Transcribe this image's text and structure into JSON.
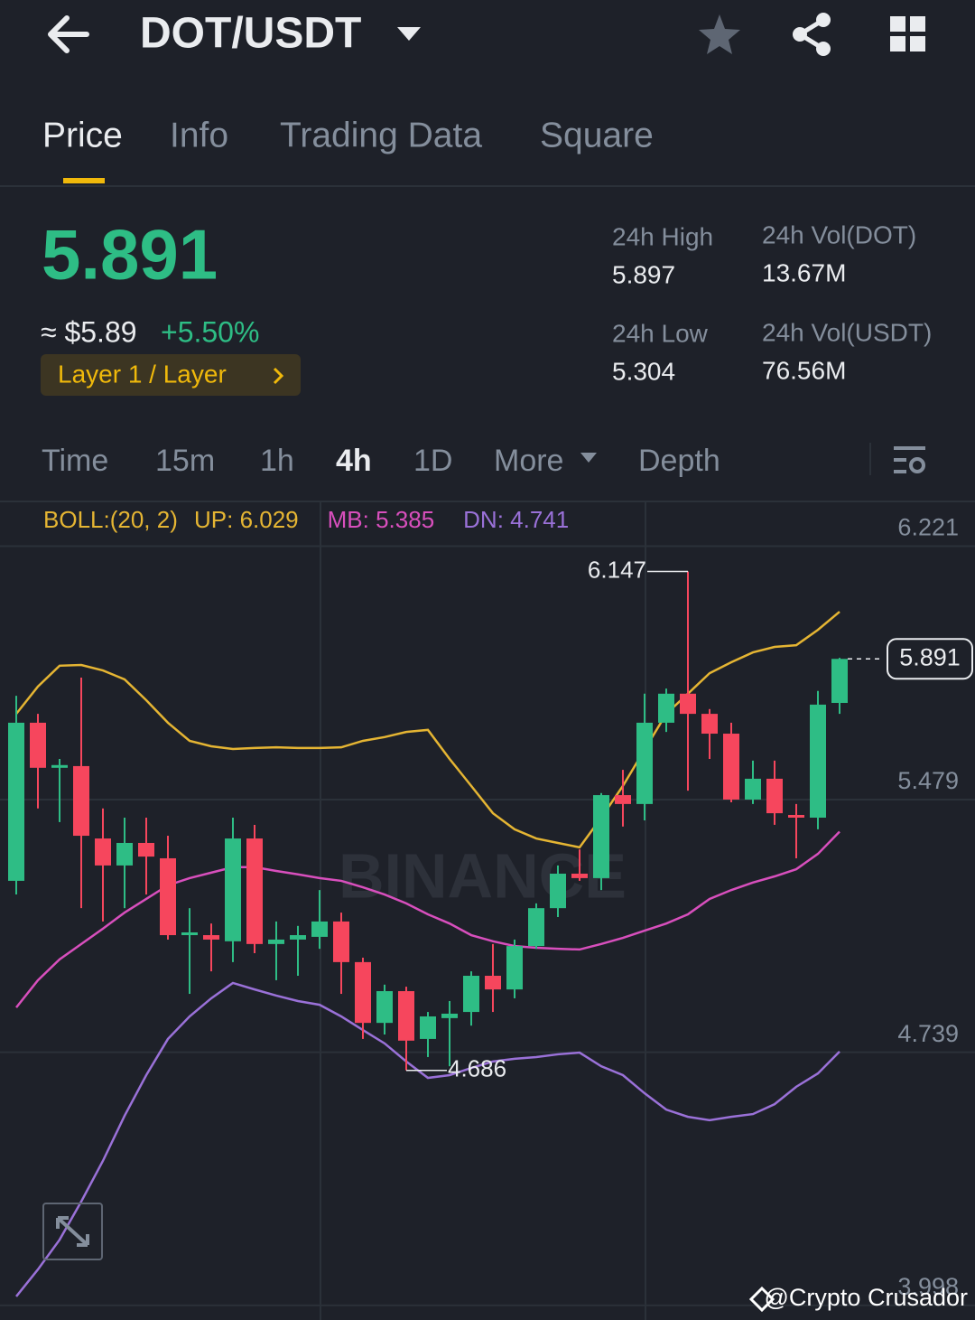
{
  "header": {
    "title": "DOT/USDT"
  },
  "tabs": [
    "Price",
    "Info",
    "Trading Data",
    "Square"
  ],
  "summary": {
    "price": "5.891",
    "approx": "≈ $5.89",
    "change": "+5.50%",
    "tag": "Layer 1 / Layer",
    "stats": [
      {
        "label": "24h High",
        "value": "5.897"
      },
      {
        "label": "24h Vol(DOT)",
        "value": "13.67M"
      },
      {
        "label": "24h Low",
        "value": "5.304"
      },
      {
        "label": "24h Vol(USDT)",
        "value": "76.56M"
      }
    ]
  },
  "intervals": [
    "Time",
    "15m",
    "1h",
    "4h",
    "1D",
    "More",
    "Depth"
  ],
  "chart_data": {
    "type": "candlestick",
    "indicator": "BOLL:(20, 2)",
    "watermark": "BINANCE",
    "credit": "@Crypto Crusador",
    "ylim": [
      3.955,
      6.352
    ],
    "yticks": [
      6.221,
      5.479,
      4.739,
      3.998
    ],
    "grid": true,
    "up_color": "#2ebd85",
    "down_color": "#f6465d",
    "candles": {
      "open": [
        5.241,
        5.704,
        5.572,
        5.577,
        5.365,
        5.286,
        5.352,
        5.307,
        5.082,
        5.082,
        5.064,
        5.365,
        5.056,
        5.069,
        5.077,
        5.122,
        5.003,
        4.825,
        4.918,
        4.778,
        4.839,
        4.857,
        4.963,
        4.923,
        5.05,
        5.161,
        5.262,
        5.249,
        5.492,
        5.466,
        5.704,
        5.789,
        5.73,
        5.672,
        5.479,
        5.54,
        5.434,
        5.426,
        5.762
      ],
      "close": [
        5.704,
        5.572,
        5.58,
        5.373,
        5.286,
        5.352,
        5.312,
        5.082,
        5.09,
        5.069,
        5.365,
        5.056,
        5.069,
        5.082,
        5.122,
        5.003,
        4.825,
        4.918,
        4.773,
        4.844,
        4.852,
        4.963,
        4.923,
        5.05,
        5.161,
        5.262,
        5.249,
        5.492,
        5.466,
        5.704,
        5.789,
        5.73,
        5.672,
        5.479,
        5.54,
        5.439,
        5.426,
        5.757,
        5.891
      ],
      "high": [
        5.783,
        5.73,
        5.598,
        5.836,
        5.453,
        5.426,
        5.426,
        5.373,
        5.161,
        5.116,
        5.426,
        5.405,
        5.122,
        5.109,
        5.214,
        5.148,
        5.016,
        4.937,
        4.931,
        4.857,
        4.889,
        4.976,
        5.056,
        5.069,
        5.175,
        5.286,
        5.333,
        5.498,
        5.566,
        5.789,
        5.804,
        6.147,
        5.744,
        5.704,
        5.593,
        5.593,
        5.466,
        5.797,
        5.894
      ],
      "low": [
        5.201,
        5.453,
        5.413,
        5.161,
        5.122,
        5.161,
        5.201,
        5.069,
        4.91,
        4.976,
        5.003,
        5.029,
        4.95,
        4.963,
        5.042,
        4.91,
        4.778,
        4.791,
        4.686,
        4.725,
        4.698,
        4.817,
        4.857,
        4.897,
        5.042,
        5.135,
        5.241,
        5.214,
        5.4,
        5.418,
        5.677,
        5.505,
        5.598,
        5.471,
        5.466,
        5.405,
        5.307,
        5.392,
        5.73
      ]
    },
    "series": [
      {
        "name": "UP: 6.029",
        "color": "#e5b533",
        "values": [
          5.73,
          5.81,
          5.871,
          5.873,
          5.857,
          5.831,
          5.77,
          5.704,
          5.651,
          5.635,
          5.627,
          5.63,
          5.632,
          5.63,
          5.63,
          5.632,
          5.651,
          5.662,
          5.677,
          5.683,
          5.598,
          5.519,
          5.439,
          5.392,
          5.365,
          5.352,
          5.339,
          5.426,
          5.519,
          5.625,
          5.73,
          5.789,
          5.849,
          5.881,
          5.91,
          5.926,
          5.931,
          5.976,
          6.029
        ]
      },
      {
        "name": "MB: 5.385",
        "color": "#d84fbd",
        "values": [
          4.87,
          4.95,
          5.011,
          5.056,
          5.101,
          5.148,
          5.188,
          5.228,
          5.249,
          5.265,
          5.281,
          5.281,
          5.27,
          5.26,
          5.249,
          5.241,
          5.222,
          5.201,
          5.175,
          5.143,
          5.116,
          5.082,
          5.064,
          5.05,
          5.045,
          5.042,
          5.04,
          5.056,
          5.074,
          5.095,
          5.116,
          5.143,
          5.188,
          5.214,
          5.236,
          5.254,
          5.275,
          5.32,
          5.385
        ]
      },
      {
        "name": "DN: 4.741",
        "color": "#9a71d8",
        "values": [
          4.024,
          4.103,
          4.19,
          4.302,
          4.421,
          4.553,
          4.672,
          4.778,
          4.844,
          4.897,
          4.942,
          4.923,
          4.905,
          4.889,
          4.878,
          4.844,
          4.804,
          4.765,
          4.712,
          4.664,
          4.672,
          4.693,
          4.712,
          4.72,
          4.725,
          4.733,
          4.738,
          4.698,
          4.672,
          4.619,
          4.571,
          4.55,
          4.54,
          4.55,
          4.558,
          4.587,
          4.638,
          4.677,
          4.741
        ]
      }
    ],
    "high_label": "6.147",
    "low_label": "4.686",
    "last_price": 5.891
  }
}
